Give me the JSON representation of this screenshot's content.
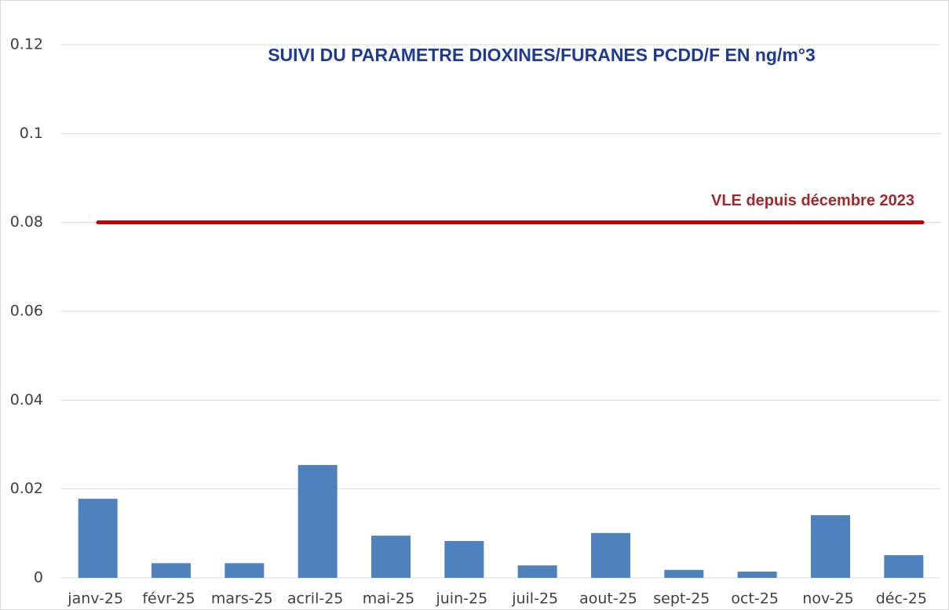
{
  "chart_data": {
    "type": "bar",
    "title": "SUIVI DU PARAMETRE DIOXINES/FURANES PCDD/F EN ng/m°3",
    "categories": [
      "janv-25",
      "févr-25",
      "mars-25",
      "acril-25",
      "mai-25",
      "juin-25",
      "juil-25",
      "aout-25",
      "sept-25",
      "oct-25",
      "nov-25",
      "déc-25"
    ],
    "values": [
      0.0178,
      0.0033,
      0.0033,
      0.0254,
      0.0095,
      0.0083,
      0.0028,
      0.0101,
      0.0018,
      0.0014,
      0.0141,
      0.0051
    ],
    "color": "#4f81bd",
    "ylim": [
      0,
      0.12
    ],
    "yticks": [
      0,
      0.02,
      0.04,
      0.06,
      0.08,
      0.1,
      0.12
    ],
    "grid": true,
    "reference_line": {
      "value": 0.08,
      "label": "VLE depuis décembre 2023",
      "color": "#c00000"
    }
  }
}
